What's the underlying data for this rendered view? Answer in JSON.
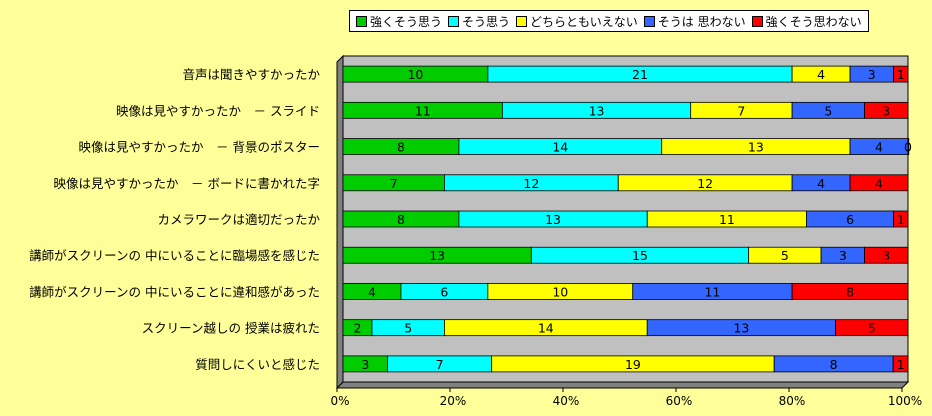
{
  "chart_data": {
    "type": "bar",
    "orientation": "horizontal",
    "stacked": "percent",
    "title": "",
    "xlabel": "",
    "ylabel": "",
    "xlim": [
      0,
      100
    ],
    "x_ticks": [
      "0%",
      "20%",
      "40%",
      "60%",
      "80%",
      "100%"
    ],
    "grid": false,
    "legend_position": "top",
    "categories": [
      "音声は聞きやすかったか",
      "映像は見やすかったか　－ スライド",
      "映像は見やすかったか　－ 背景のポスター",
      "映像は見やすかったか　－ ボードに書かれた字",
      "カメラワークは適切だったか",
      "講師がスクリーンの 中にいることに臨場感を感じた",
      "講師がスクリーンの 中にいることに違和感があった",
      "スクリーン越しの 授業は疲れた",
      "質問しにくいと感じた"
    ],
    "series": [
      {
        "name": "強くそう思う",
        "color": "#00cc00",
        "values": [
          10,
          11,
          8,
          7,
          8,
          13,
          4,
          2,
          3
        ]
      },
      {
        "name": "そう思う",
        "color": "#00ffff",
        "values": [
          21,
          13,
          14,
          12,
          13,
          15,
          6,
          5,
          7
        ]
      },
      {
        "name": "どちらともいえない",
        "color": "#ffff00",
        "values": [
          4,
          7,
          13,
          12,
          11,
          5,
          10,
          14,
          19
        ]
      },
      {
        "name": "そうは 思わない",
        "color": "#3366ff",
        "values": [
          3,
          5,
          4,
          4,
          6,
          3,
          11,
          13,
          8
        ]
      },
      {
        "name": "強くそう思わない",
        "color": "#ff0000",
        "values": [
          1,
          3,
          0,
          4,
          1,
          3,
          8,
          5,
          1
        ]
      }
    ]
  },
  "colors": {
    "background": "#ffff99",
    "plot_area": "#c0c0c0"
  }
}
